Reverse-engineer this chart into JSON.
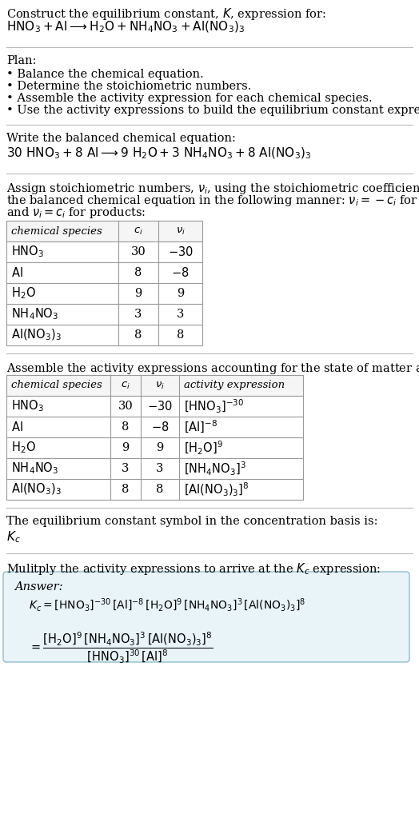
{
  "title_line1": "Construct the equilibrium constant, $K$, expression for:",
  "title_line2": "$\\mathrm{HNO_3 + Al} \\longrightarrow \\mathrm{H_2O + NH_4NO_3 + Al(NO_3)_3}$",
  "plan_header": "Plan:",
  "plan_items": [
    "• Balance the chemical equation.",
    "• Determine the stoichiometric numbers.",
    "• Assemble the activity expression for each chemical species.",
    "• Use the activity expressions to build the equilibrium constant expression."
  ],
  "balanced_header": "Write the balanced chemical equation:",
  "balanced_eq": "$\\mathrm{30\\ HNO_3 + 8\\ Al} \\longrightarrow \\mathrm{9\\ H_2O + 3\\ NH_4NO_3 + 8\\ Al(NO_3)_3}$",
  "stoich_lines": [
    "Assign stoichiometric numbers, $\\nu_i$, using the stoichiometric coefficients, $c_i$, from",
    "the balanced chemical equation in the following manner: $\\nu_i = -c_i$ for reactants",
    "and $\\nu_i = c_i$ for products:"
  ],
  "table1_cols": [
    "chemical species",
    "$c_i$",
    "$\\nu_i$"
  ],
  "table1_rows": [
    [
      "$\\mathrm{HNO_3}$",
      "30",
      "$-30$"
    ],
    [
      "$\\mathrm{Al}$",
      "8",
      "$-8$"
    ],
    [
      "$\\mathrm{H_2O}$",
      "9",
      "9"
    ],
    [
      "$\\mathrm{NH_4NO_3}$",
      "3",
      "3"
    ],
    [
      "$\\mathrm{Al(NO_3)_3}$",
      "8",
      "8"
    ]
  ],
  "activity_header": "Assemble the activity expressions accounting for the state of matter and $\\nu_i$:",
  "table2_cols": [
    "chemical species",
    "$c_i$",
    "$\\nu_i$",
    "activity expression"
  ],
  "table2_rows": [
    [
      "$\\mathrm{HNO_3}$",
      "30",
      "$-30$",
      "$[\\mathrm{HNO_3}]^{-30}$"
    ],
    [
      "$\\mathrm{Al}$",
      "8",
      "$-8$",
      "$[\\mathrm{Al}]^{-8}$"
    ],
    [
      "$\\mathrm{H_2O}$",
      "9",
      "9",
      "$[\\mathrm{H_2O}]^{9}$"
    ],
    [
      "$\\mathrm{NH_4NO_3}$",
      "3",
      "3",
      "$[\\mathrm{NH_4NO_3}]^{3}$"
    ],
    [
      "$\\mathrm{Al(NO_3)_3}$",
      "8",
      "8",
      "$[\\mathrm{Al(NO_3)_3}]^{8}$"
    ]
  ],
  "kc_header": "The equilibrium constant symbol in the concentration basis is:",
  "kc_symbol": "$K_c$",
  "multiply_header": "Mulitply the activity expressions to arrive at the $K_c$ expression:",
  "answer_label": "Answer:",
  "answer_line1": "$K_c = [\\mathrm{HNO_3}]^{-30}\\, [\\mathrm{Al}]^{-8}\\, [\\mathrm{H_2O}]^{9}\\, [\\mathrm{NH_4NO_3}]^{3}\\, [\\mathrm{Al(NO_3)_3}]^{8}$",
  "answer_eq_lhs": "$= \\dfrac{[\\mathrm{H_2O}]^{9}\\, [\\mathrm{NH_4NO_3}]^{3}\\, [\\mathrm{Al(NO_3)_3}]^{8}}{[\\mathrm{HNO_3}]^{30}\\, [\\mathrm{Al}]^{8}}$",
  "bg_color": "#ffffff",
  "text_color": "#000000",
  "table_header_bg": "#f5f5f5",
  "answer_box_bg": "#e8f4f8",
  "answer_box_border": "#90bcd0",
  "sep_color": "#bbbbbb",
  "fs": 10.5,
  "fs_title": 11.0,
  "fs_table": 10.5
}
